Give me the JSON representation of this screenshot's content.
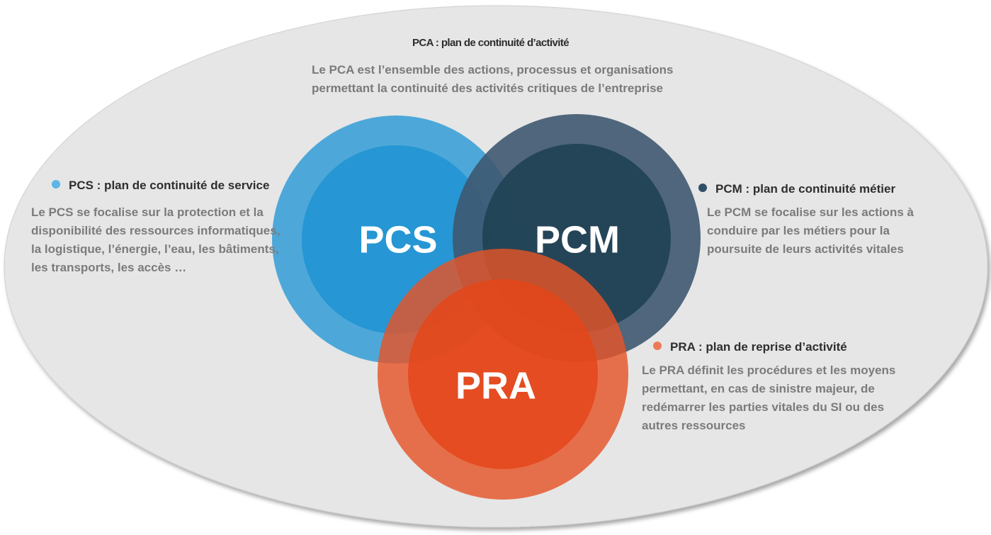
{
  "pca": {
    "title": "PCA : plan de continuité d’activité",
    "desc": "Le PCA est l’ensemble des actions, processus et organisations permettant la continuité des activités critiques de l’entreprise"
  },
  "pcs": {
    "label": "PCS",
    "title": "PCS : plan de continuité de service",
    "desc": "Le PCS se focalise sur la protection et la disponibilité des ressources informatiques, la logistique, l’énergie, l’eau, les bâtiments, les transports, les accès …",
    "color": "#4da8d9",
    "inner_color": "#2696d4"
  },
  "pcm": {
    "label": "PCM",
    "title": "PCM : plan de continuité métier",
    "desc": "Le PCM se focalise sur les actions à conduire par les métiers pour la poursuite de leurs activités vitales",
    "color": "#4a6379",
    "inner_color": "#284c5e"
  },
  "pra": {
    "label": "PRA",
    "title": "PRA : plan de reprise d’activité",
    "desc": "Le PRA définit les procédures et les moyens permettant, en cas de sinistre majeur, de redémarrer les parties vitales du SI ou des autres ressources",
    "color": "#e4613c",
    "inner_color": "#e44b1e"
  },
  "background_color": "#e6e6e6"
}
